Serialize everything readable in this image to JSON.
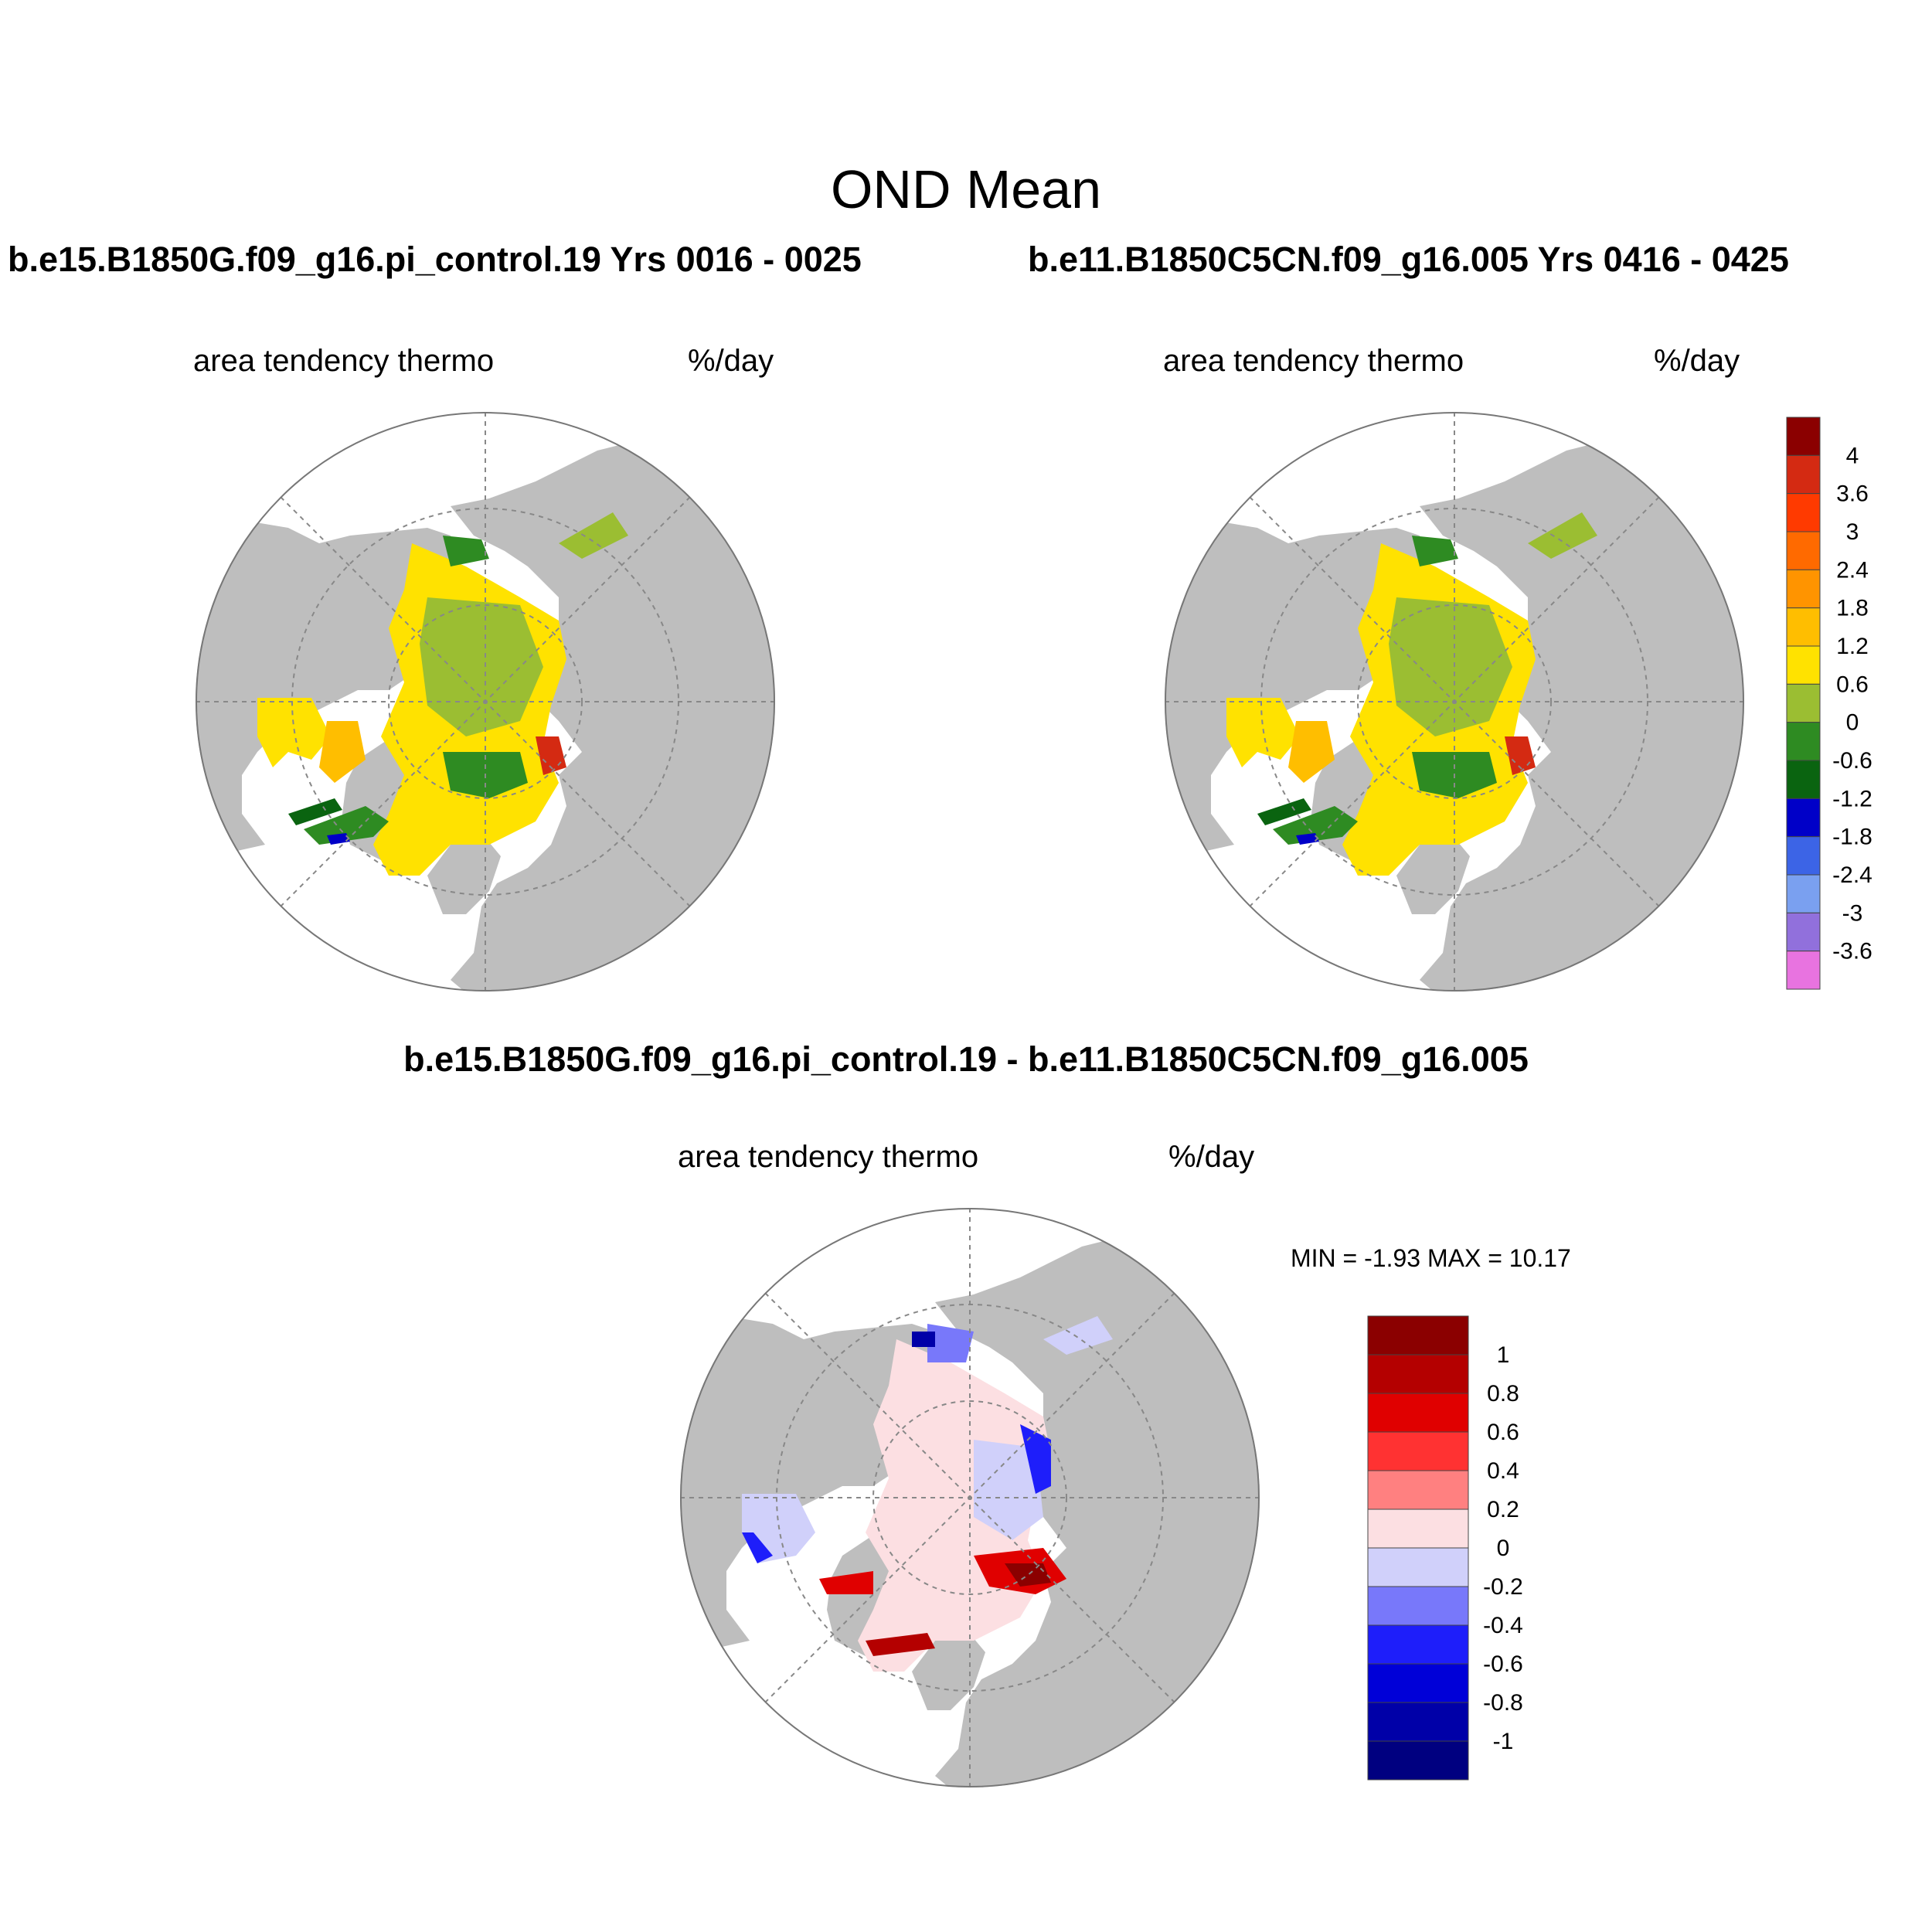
{
  "main_title": "OND Mean",
  "panels": [
    {
      "title": "b.e15.B1850G.f09_g16.pi_control.19  Yrs 0016 - 0025",
      "variable": "area tendency thermo",
      "units": "%/day"
    },
    {
      "title": "b.e11.B1850C5CN.f09_g16.005  Yrs 0416 - 0425",
      "variable": "area tendency thermo",
      "units": "%/day"
    },
    {
      "title": "b.e15.B1850G.f09_g16.pi_control.19 - b.e11.B1850C5CN.f09_g16.005",
      "variable": "area tendency thermo",
      "units": "%/day",
      "stats": "MIN =  -1.93 MAX =  10.17"
    }
  ],
  "colorbar_main": {
    "labels": [
      "4",
      "3.6",
      "3",
      "2.4",
      "1.8",
      "1.2",
      "0.6",
      "0",
      "-0.6",
      "-1.2",
      "-1.8",
      "-2.4",
      "-3",
      "-3.6"
    ],
    "colors": [
      "#8b0000",
      "#d42a12",
      "#ff3a00",
      "#ff6a00",
      "#ff9400",
      "#ffbe00",
      "#ffe200",
      "#9bbe32",
      "#2e8b22",
      "#0a6410",
      "#0000c8",
      "#3c64e6",
      "#7aa0f0",
      "#9170dc",
      "#e873e0"
    ]
  },
  "colorbar_diff": {
    "labels": [
      "1",
      "0.8",
      "0.6",
      "0.4",
      "0.2",
      "0",
      "-0.2",
      "-0.4",
      "-0.6",
      "-0.8",
      "-1"
    ],
    "colors": [
      "#8b0000",
      "#b40000",
      "#e00000",
      "#ff3232",
      "#ff8080",
      "#fcdfe2",
      "#d0d0fa",
      "#7878fa",
      "#1e1efa",
      "#0000d8",
      "#0000a8",
      "#000080"
    ]
  },
  "colors": {
    "land": "#bebebe",
    "ocean": "#ffffff",
    "grid": "#888888"
  }
}
